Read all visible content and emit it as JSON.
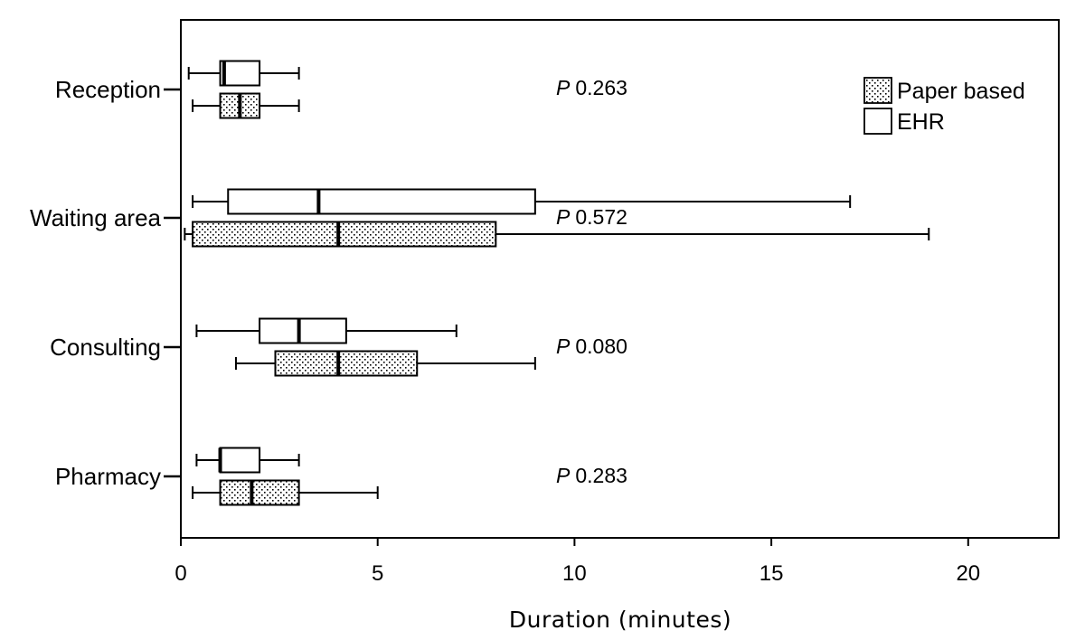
{
  "chart_data": {
    "type": "boxplot",
    "orientation": "horizontal",
    "xlabel": "Duration (minutes)",
    "xlim": [
      0,
      22.3
    ],
    "xticks": [
      0,
      5,
      10,
      15,
      20
    ],
    "categories": [
      "Reception",
      "Waiting area",
      "Consulting",
      "Pharmacy"
    ],
    "legend": {
      "position": "top-right",
      "entries": [
        {
          "label": "Paper based",
          "pattern": "dotted"
        },
        {
          "label": "EHR",
          "pattern": "none"
        }
      ]
    },
    "series": [
      {
        "name": "EHR",
        "boxes": [
          {
            "category": "Reception",
            "min": 0.2,
            "q1": 1.0,
            "median": 1.1,
            "q3": 2.0,
            "max": 3.0
          },
          {
            "category": "Waiting area",
            "min": 0.3,
            "q1": 1.2,
            "median": 3.5,
            "q3": 9.0,
            "max": 17.0
          },
          {
            "category": "Consulting",
            "min": 0.4,
            "q1": 2.0,
            "median": 3.0,
            "q3": 4.2,
            "max": 7.0
          },
          {
            "category": "Pharmacy",
            "min": 0.4,
            "q1": 1.0,
            "median": 1.0,
            "q3": 2.0,
            "max": 3.0
          }
        ]
      },
      {
        "name": "Paper based",
        "boxes": [
          {
            "category": "Reception",
            "min": 0.3,
            "q1": 1.0,
            "median": 1.5,
            "q3": 2.0,
            "max": 3.0
          },
          {
            "category": "Waiting area",
            "min": 0.1,
            "q1": 0.3,
            "median": 4.0,
            "q3": 8.0,
            "max": 19.0
          },
          {
            "category": "Consulting",
            "min": 1.4,
            "q1": 2.4,
            "median": 4.0,
            "q3": 6.0,
            "max": 9.0
          },
          {
            "category": "Pharmacy",
            "min": 0.3,
            "q1": 1.0,
            "median": 1.8,
            "q3": 3.0,
            "max": 5.0
          }
        ]
      }
    ],
    "annotations": [
      {
        "category": "Reception",
        "p_symbol": "P",
        "value": "0.263"
      },
      {
        "category": "Waiting area",
        "p_symbol": "P",
        "value": "0.572"
      },
      {
        "category": "Consulting",
        "p_symbol": "P",
        "value": "0.080"
      },
      {
        "category": "Pharmacy",
        "p_symbol": "P",
        "value": "0.283"
      }
    ]
  }
}
